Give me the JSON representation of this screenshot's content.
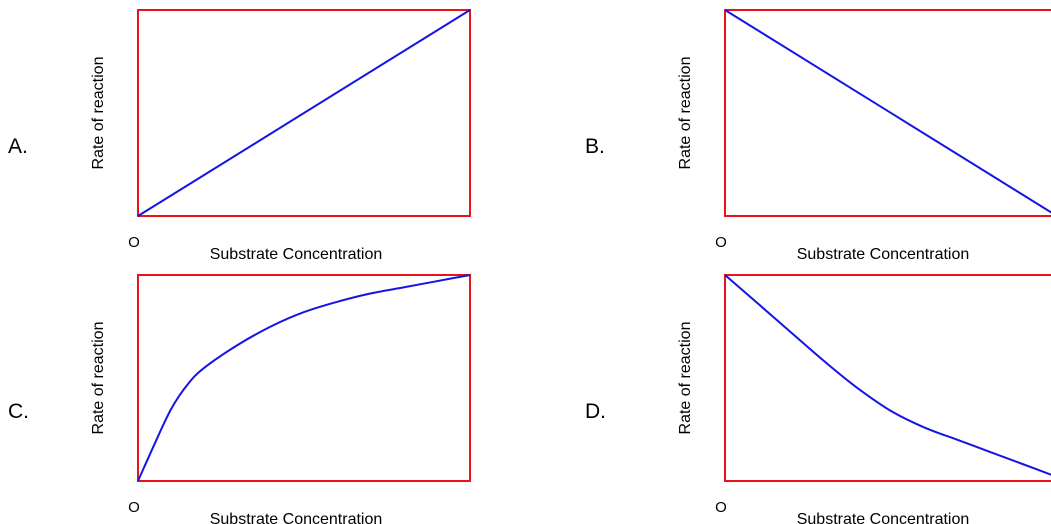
{
  "colors": {
    "frame": "#e8141b",
    "curve": "#1414e6",
    "text": "#000000"
  },
  "chart_data": [
    {
      "type": "line",
      "option_label": "A.",
      "origin_label": "O",
      "xlabel": "Substrate Concentration",
      "ylabel": "Rate of reaction",
      "xlim": [
        0,
        1
      ],
      "ylim": [
        0,
        1
      ],
      "series": [
        {
          "x": [
            0,
            1
          ],
          "y": [
            0,
            1
          ]
        }
      ]
    },
    {
      "type": "line",
      "option_label": "B.",
      "origin_label": "O",
      "xlabel": "Substrate Concentration",
      "ylabel": "Rate of reaction",
      "xlim": [
        0,
        1
      ],
      "ylim": [
        0,
        1
      ],
      "series": [
        {
          "x": [
            0,
            1
          ],
          "y": [
            1,
            0
          ]
        }
      ]
    },
    {
      "type": "line",
      "option_label": "C.",
      "origin_label": "O",
      "xlabel": "Substrate Concentration",
      "ylabel": "Rate of reaction",
      "xlim": [
        0,
        1
      ],
      "ylim": [
        0,
        1
      ],
      "series": [
        {
          "x": [
            0,
            0.05,
            0.1,
            0.15,
            0.2,
            0.3,
            0.4,
            0.5,
            0.6,
            0.7,
            0.8,
            0.9,
            1.0
          ],
          "y": [
            0,
            0.18,
            0.35,
            0.47,
            0.55,
            0.66,
            0.75,
            0.82,
            0.87,
            0.91,
            0.94,
            0.97,
            1.0
          ]
        }
      ]
    },
    {
      "type": "line",
      "option_label": "D.",
      "origin_label": "O",
      "xlabel": "Substrate Concentration",
      "ylabel": "Rate of reaction",
      "xlim": [
        0,
        1
      ],
      "ylim": [
        0,
        1
      ],
      "series": [
        {
          "x": [
            0,
            0.1,
            0.2,
            0.3,
            0.4,
            0.5,
            0.6,
            0.7,
            0.8,
            0.9,
            1.0
          ],
          "y": [
            1.0,
            0.86,
            0.72,
            0.58,
            0.45,
            0.34,
            0.26,
            0.2,
            0.14,
            0.08,
            0.02
          ]
        }
      ]
    }
  ]
}
